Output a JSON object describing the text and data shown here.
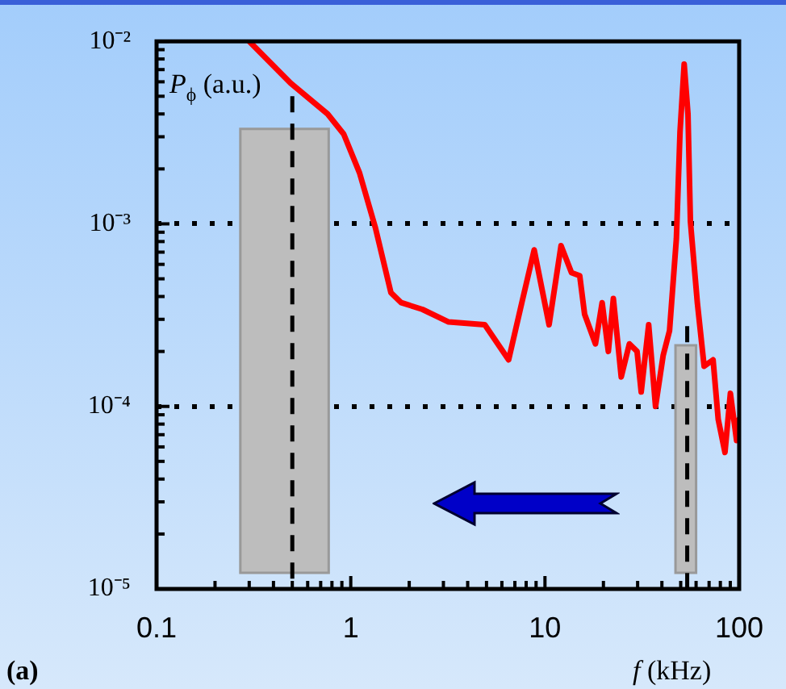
{
  "chart_data": {
    "type": "line",
    "xlabel": "f (kHz)",
    "ylabel": "P$_{ϕ}$ (a.u.)",
    "log": "xy",
    "grid": "y",
    "legend": false,
    "marker": "none",
    "line_style": "solid",
    "xlim": [
      0.1,
      100
    ],
    "xticks": [
      0.1,
      1,
      10,
      100
    ],
    "ylim": [
      1e-05,
      0.01
    ],
    "yticks": [
      {
        "value": 1e-05,
        "label": "10⁻⁵"
      },
      {
        "value": 0.0001,
        "label": "10⁻⁴"
      },
      {
        "value": 0.001,
        "label": "10⁻³"
      },
      {
        "value": 0.01,
        "label": "10⁻²"
      }
    ],
    "x": [
      0.3,
      0.49,
      0.76,
      0.92,
      1.11,
      1.34,
      1.61,
      1.82,
      2.34,
      3.19,
      4.9,
      6.5,
      7.6,
      8.8,
      10.5,
      12.1,
      13.7,
      15.1,
      16.0,
      18.2,
      19.7,
      21.2,
      22.5,
      24.7,
      27.2,
      29.8,
      31.3,
      34.2,
      37.1,
      40.6,
      43.8,
      47.5,
      49.6,
      52.1,
      54.5,
      56.1,
      60.9,
      66,
      73.4,
      78,
      84.5,
      90.1,
      97,
      100
    ],
    "series": [
      {
        "color": "#ff0000",
        "values": [
          0.01,
          0.0059,
          0.004,
          0.0031,
          0.0019,
          0.00095,
          0.00042,
          0.00037,
          0.00034,
          0.00029,
          0.00028,
          0.00018,
          0.00037,
          0.00072,
          0.00028,
          0.00076,
          0.00054,
          0.00052,
          0.00032,
          0.00022,
          0.00037,
          0.0002,
          0.00039,
          0.000145,
          0.00022,
          0.0002,
          0.00012,
          0.00028,
          0.0001,
          0.00019,
          0.00026,
          0.00083,
          0.0032,
          0.0075,
          0.004,
          0.00103,
          0.00037,
          0.000166,
          0.00018,
          8.5e-05,
          5.6e-05,
          0.000118,
          6.5e-05,
          8.5e-05
        ]
      }
    ],
    "bands": [
      {
        "axis": "x",
        "from": 0.27,
        "to": 0.77,
        "color": "#bdbdbd"
      },
      {
        "axis": "x",
        "from": 47,
        "to": 60,
        "color": "#bdbdbd"
      }
    ],
    "ref_lines": [
      {
        "axis": "x",
        "value": 0.5,
        "line_style": "dashed"
      },
      {
        "axis": "x",
        "value": 54,
        "line_style": "dashed"
      }
    ],
    "annotations": [
      "(a)"
    ]
  }
}
